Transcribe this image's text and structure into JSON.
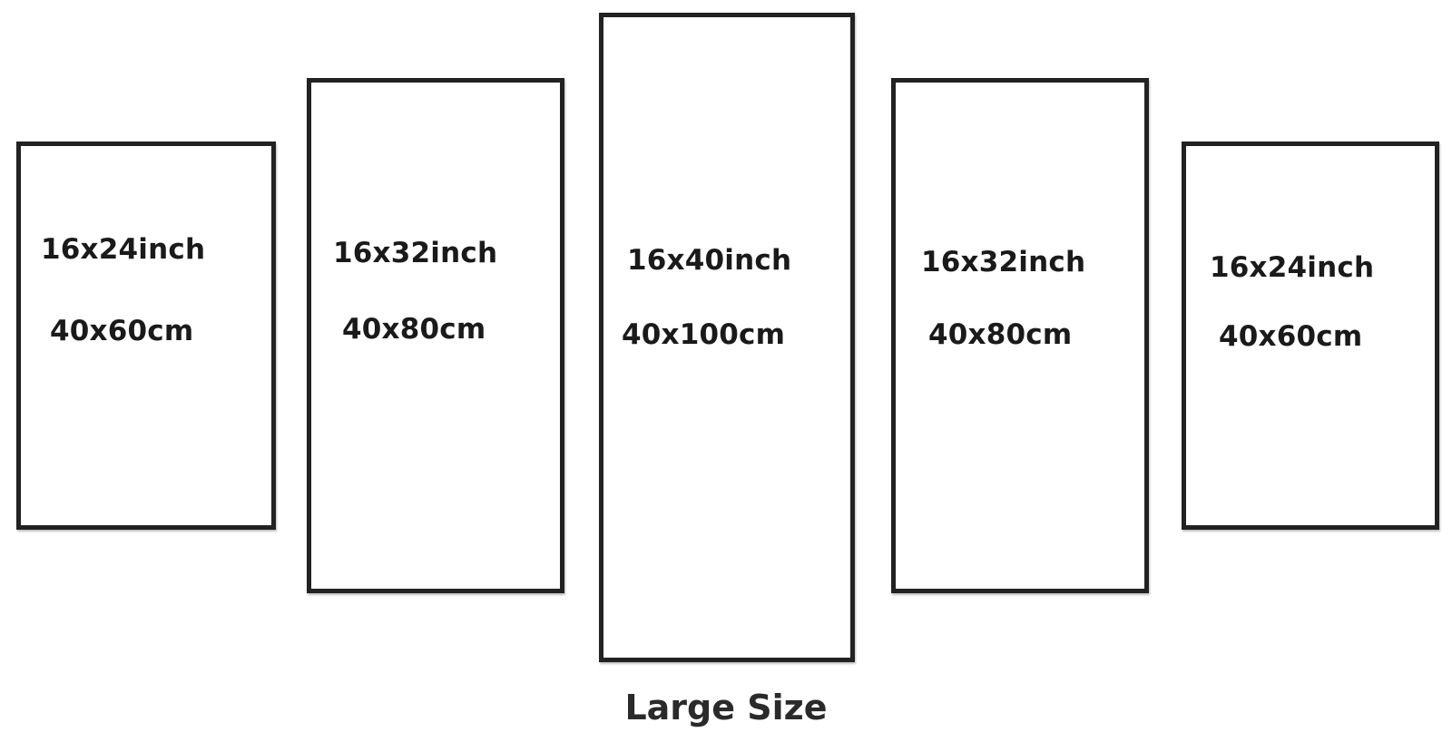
{
  "panels": [
    {
      "inch": "16x24inch",
      "cm": "40x60cm"
    },
    {
      "inch": "16x32inch",
      "cm": "40x80cm"
    },
    {
      "inch": "16x40inch",
      "cm": "40x100cm"
    },
    {
      "inch": "16x32inch",
      "cm": "40x80cm"
    },
    {
      "inch": "16x24inch",
      "cm": "40x60cm"
    }
  ],
  "caption": "Large Size",
  "colors": {
    "frame": "#222222",
    "background": "#ffffff",
    "text": "#1a1a1a"
  }
}
